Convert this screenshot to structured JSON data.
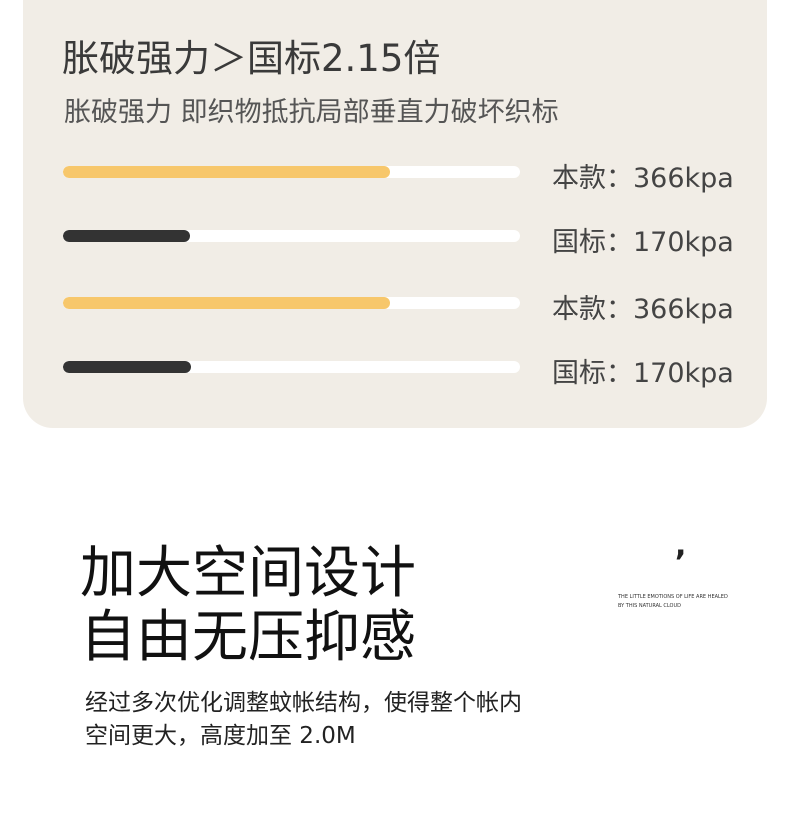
{
  "header": {
    "title": "胀破强力＞国标2.15倍",
    "subtitle": "胀破强力 即织物抵抗局部垂直力破坏织标"
  },
  "rows": [
    {
      "label": "本款：366kpa"
    },
    {
      "label": "国标：170kpa"
    },
    {
      "label": "本款：366kpa"
    },
    {
      "label": "国标：170kpa"
    }
  ],
  "headline": {
    "lines": [
      "加大空间设计",
      "自由无压抑感"
    ]
  },
  "body": {
    "lines": [
      "经过多次优化调整蚊帐结构，使得整个帐内",
      "空间更大，高度加至 2.0M"
    ]
  },
  "quote": {
    "mark": ",",
    "lines": [
      "THE LITTLE EMOTIONS OF LIFE ARE HEALED",
      "BY THIS NATURAL CLOUD"
    ]
  }
}
